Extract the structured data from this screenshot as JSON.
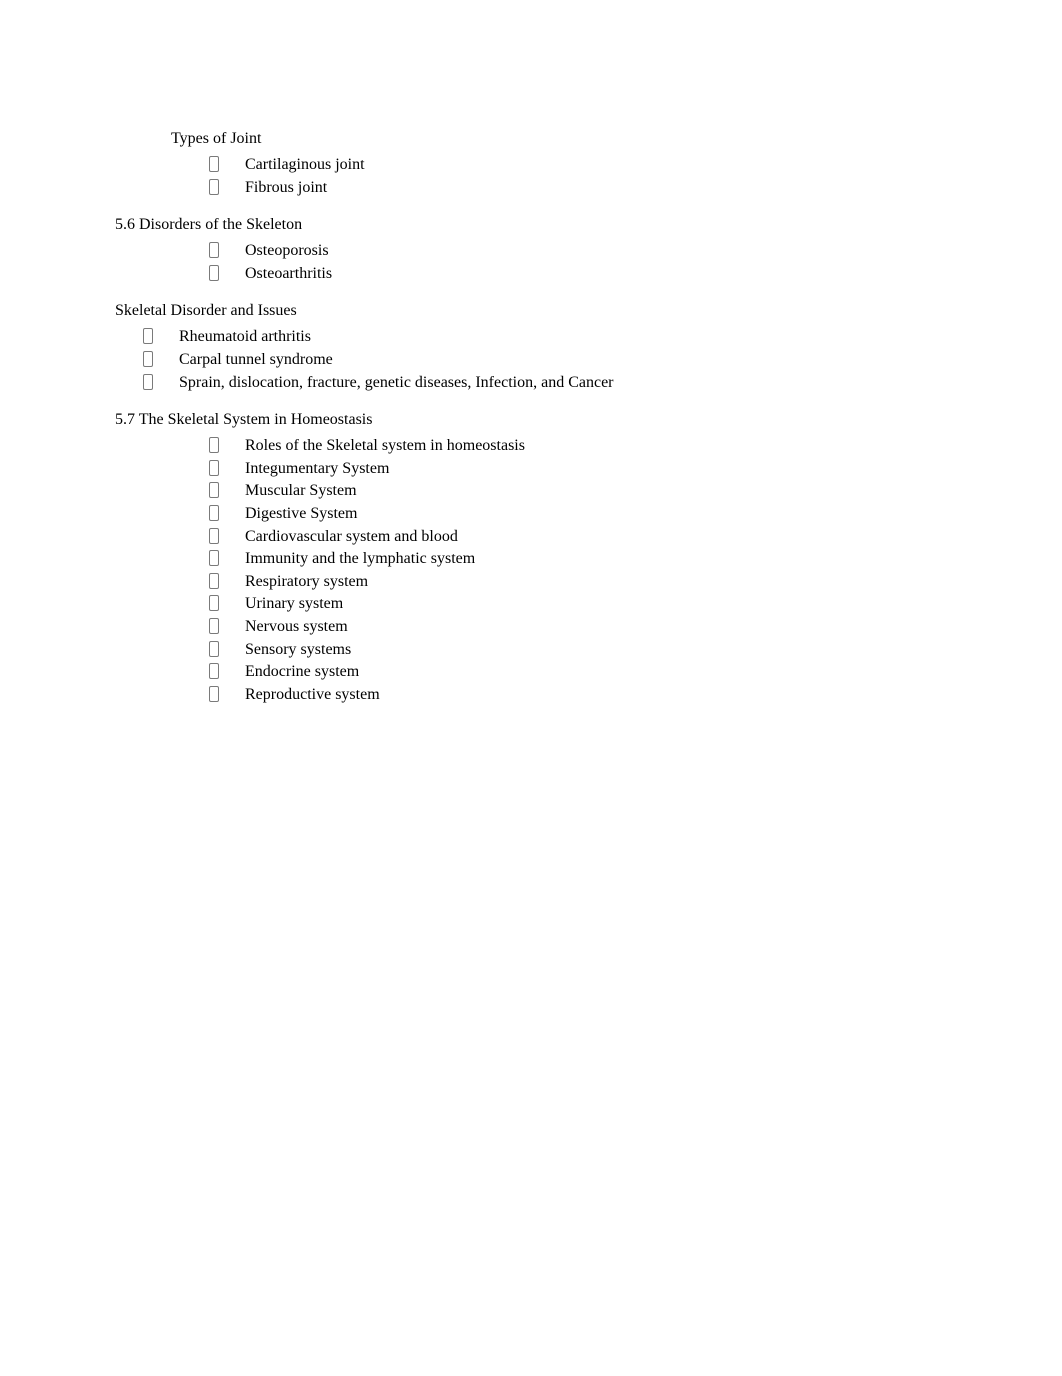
{
  "colors": {
    "text": "#000000",
    "background": "#ffffff",
    "bullet_border": "#7a7a7a"
  },
  "typography": {
    "font_family": "Times New Roman",
    "body_size_pt": 12,
    "line_height": 1.35
  },
  "sections": {
    "joint_types": {
      "heading": "Types of Joint",
      "items": [
        "Cartilaginous joint",
        "Fibrous joint"
      ]
    },
    "disorders": {
      "heading": "5.6 Disorders of the Skeleton",
      "items": [
        "Osteoporosis",
        "Osteoarthritis"
      ]
    },
    "skeletal_issues": {
      "heading": "Skeletal Disorder and Issues",
      "items": [
        "Rheumatoid arthritis",
        "Carpal tunnel syndrome",
        "Sprain, dislocation, fracture, genetic diseases, Infection, and Cancer"
      ]
    },
    "homeostasis": {
      "heading": "5.7 The Skeletal System in Homeostasis",
      "items": [
        "Roles of the Skeletal system in homeostasis",
        "Integumentary System",
        "Muscular System",
        "Digestive System",
        "Cardiovascular system and blood",
        "Immunity and the lymphatic system",
        "Respiratory system",
        "Urinary system",
        "Nervous system",
        "Sensory systems",
        "Endocrine system",
        "Reproductive system"
      ]
    }
  }
}
